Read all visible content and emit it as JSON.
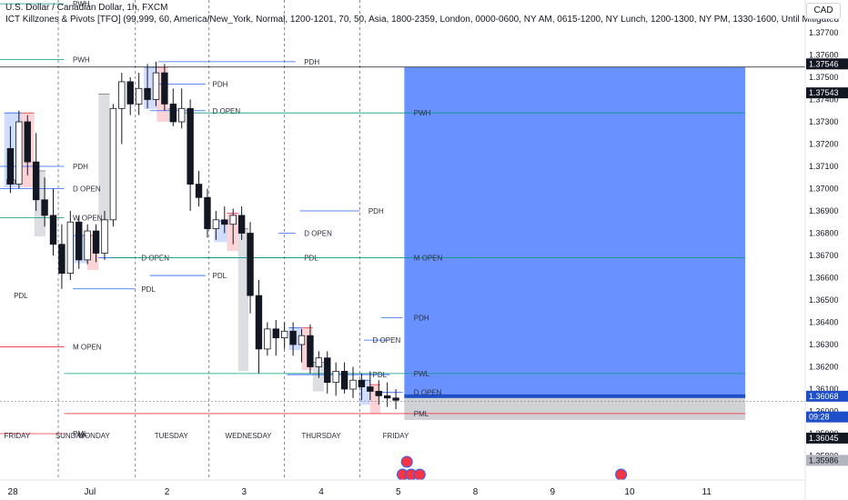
{
  "header": {
    "title": "U.S. Dollar / Canadian Dollar, 1h, FXCM",
    "indicator": "ICT Killzones & Pivots [TFO] (99,999, 60, America/New_York, Normal, 1200-1201, 70, 50, Asia, 1800-2359, London, 0000-0600, NY AM, 0615-1200, NY Lunch, 1200-1300, NY PM, 1330-1600, Until Mitigated",
    "currency": "CAD"
  },
  "chart_data": {
    "type": "candlestick",
    "symbol": "USDCAD",
    "timeframe": "1h",
    "ylim": [
      1.3575,
      1.3783
    ],
    "price_ticks": [
      "1.37700",
      "1.37600",
      "1.37500",
      "1.37400",
      "1.37300",
      "1.37200",
      "1.37100",
      "1.37000",
      "1.36900",
      "1.36800",
      "1.36700",
      "1.36600",
      "1.36500",
      "1.36400",
      "1.36300",
      "1.36200",
      "1.36100",
      "1.36000",
      "1.35900",
      "1.35800"
    ],
    "price_tick_values": [
      1.377,
      1.376,
      1.375,
      1.374,
      1.373,
      1.372,
      1.371,
      1.37,
      1.369,
      1.368,
      1.367,
      1.366,
      1.365,
      1.364,
      1.363,
      1.362,
      1.361,
      1.36,
      1.359,
      1.358
    ],
    "date_ticks": [
      {
        "label": "28",
        "t": 0.5
      },
      {
        "label": "Jul",
        "t": 9.5
      },
      {
        "label": "2",
        "t": 18.5
      },
      {
        "label": "3",
        "t": 27.5
      },
      {
        "label": "4",
        "t": 36.5
      },
      {
        "label": "5",
        "t": 45.5
      },
      {
        "label": "8",
        "t": 54.5
      },
      {
        "label": "9",
        "t": 63.5
      },
      {
        "label": "10",
        "t": 72.5
      },
      {
        "label": "11",
        "t": 81.5
      }
    ],
    "day_labels": [
      {
        "label": "FRIDAY",
        "t": 1
      },
      {
        "label": "SUNDAY",
        "t": 7.2
      },
      {
        "label": "MONDAY",
        "t": 10
      },
      {
        "label": "TUESDAY",
        "t": 19
      },
      {
        "label": "WEDNESDAY",
        "t": 28
      },
      {
        "label": "THURSDAY",
        "t": 36.5
      },
      {
        "label": "FRIDAY",
        "t": 45.2
      }
    ],
    "day_separators": [
      5.8,
      14.8,
      23.4,
      32.2,
      41.0
    ],
    "candles": [
      [
        1.3718,
        1.3728,
        1.3698,
        1.3702
      ],
      [
        1.3702,
        1.3735,
        1.37,
        1.373
      ],
      [
        1.373,
        1.3733,
        1.3706,
        1.3712
      ],
      [
        1.3712,
        1.3725,
        1.369,
        1.3695
      ],
      [
        1.3695,
        1.3705,
        1.3683,
        1.3688
      ],
      [
        1.3688,
        1.37,
        1.367,
        1.3675
      ],
      [
        1.3675,
        1.3684,
        1.3655,
        1.3662
      ],
      [
        1.3662,
        1.369,
        1.3659,
        1.3685
      ],
      [
        1.3685,
        1.3688,
        1.3664,
        1.3668
      ],
      [
        1.3668,
        1.3684,
        1.3666,
        1.3681
      ],
      [
        1.3681,
        1.3684,
        1.3667,
        1.3671
      ],
      [
        1.3671,
        1.369,
        1.3668,
        1.3686
      ],
      [
        1.3686,
        1.3738,
        1.3683,
        1.3736
      ],
      [
        1.3736,
        1.3752,
        1.372,
        1.3748
      ],
      [
        1.3748,
        1.375,
        1.3733,
        1.3738
      ],
      [
        1.3738,
        1.3752,
        1.3733,
        1.3745
      ],
      [
        1.3745,
        1.3756,
        1.3736,
        1.374
      ],
      [
        1.374,
        1.3757,
        1.3737,
        1.3752
      ],
      [
        1.3752,
        1.3756,
        1.3735,
        1.3738
      ],
      [
        1.3738,
        1.3745,
        1.3728,
        1.373
      ],
      [
        1.373,
        1.3745,
        1.3727,
        1.3736
      ],
      [
        1.3736,
        1.374,
        1.369,
        1.3702
      ],
      [
        1.3702,
        1.3708,
        1.3692,
        1.3696
      ],
      [
        1.3696,
        1.37,
        1.3678,
        1.3682
      ],
      [
        1.3682,
        1.369,
        1.3677,
        1.3686
      ],
      [
        1.3686,
        1.3692,
        1.368,
        1.3684
      ],
      [
        1.3684,
        1.3691,
        1.3675,
        1.3688
      ],
      [
        1.3688,
        1.3692,
        1.3677,
        1.368
      ],
      [
        1.368,
        1.3685,
        1.3644,
        1.3652
      ],
      [
        1.3652,
        1.3659,
        1.3617,
        1.3628
      ],
      [
        1.3628,
        1.364,
        1.3625,
        1.3637
      ],
      [
        1.3637,
        1.3641,
        1.3625,
        1.3633
      ],
      [
        1.3633,
        1.364,
        1.3628,
        1.3636
      ],
      [
        1.3636,
        1.364,
        1.3625,
        1.363
      ],
      [
        1.363,
        1.3637,
        1.3622,
        1.3634
      ],
      [
        1.3634,
        1.3639,
        1.3617,
        1.362
      ],
      [
        1.362,
        1.3627,
        1.3615,
        1.3624
      ],
      [
        1.3624,
        1.3627,
        1.3608,
        1.3613
      ],
      [
        1.3613,
        1.3622,
        1.3607,
        1.3618
      ],
      [
        1.3618,
        1.3622,
        1.3608,
        1.361
      ],
      [
        1.361,
        1.362,
        1.3606,
        1.3614
      ],
      [
        1.3614,
        1.3617,
        1.3605,
        1.3611
      ],
      [
        1.3611,
        1.3618,
        1.3605,
        1.3609
      ],
      [
        1.3609,
        1.3614,
        1.3603,
        1.3607
      ],
      [
        1.3607,
        1.3613,
        1.3602,
        1.3606
      ],
      [
        1.3606,
        1.361,
        1.3601,
        1.3605
      ]
    ],
    "killzone_boxes": [
      {
        "t0": -0.5,
        "t1": 1.5,
        "p0": 1.37005,
        "p1": 1.3734,
        "color": "blue"
      },
      {
        "t0": 1.5,
        "t1": 3.0,
        "p0": 1.37005,
        "p1": 1.3734,
        "color": "red"
      },
      {
        "t0": 3.0,
        "t1": 4.3,
        "p0": 1.36785,
        "p1": 1.3708,
        "color": "gray"
      },
      {
        "t0": 7.6,
        "t1": 9.2,
        "p0": 1.36665,
        "p1": 1.3679,
        "color": "blue"
      },
      {
        "t0": 9.2,
        "t1": 10.5,
        "p0": 1.36635,
        "p1": 1.3679,
        "color": "red"
      },
      {
        "t0": 10.5,
        "t1": 11.8,
        "p0": 1.3685,
        "p1": 1.37425,
        "color": "gray"
      },
      {
        "t0": 15.8,
        "t1": 17.3,
        "p0": 1.37358,
        "p1": 1.37545,
        "color": "blue"
      },
      {
        "t0": 17.3,
        "t1": 18.6,
        "p0": 1.373,
        "p1": 1.37545,
        "color": "red"
      },
      {
        "t0": 18.6,
        "t1": 19.8,
        "p0": 1.373,
        "p1": 1.37358,
        "color": "gray"
      },
      {
        "t0": 24.0,
        "t1": 25.5,
        "p0": 1.3676,
        "p1": 1.36855,
        "color": "blue"
      },
      {
        "t0": 25.5,
        "t1": 26.8,
        "p0": 1.3672,
        "p1": 1.3689,
        "color": "red"
      },
      {
        "t0": 26.8,
        "t1": 28.0,
        "p0": 1.3618,
        "p1": 1.3682,
        "color": "gray"
      },
      {
        "t0": 32.7,
        "t1": 34.2,
        "p0": 1.36275,
        "p1": 1.36375,
        "color": "blue"
      },
      {
        "t0": 34.2,
        "t1": 35.5,
        "p0": 1.36185,
        "p1": 1.36375,
        "color": "red"
      },
      {
        "t0": 35.5,
        "t1": 36.8,
        "p0": 1.3609,
        "p1": 1.3622,
        "color": "gray"
      },
      {
        "t0": 40.9,
        "t1": 42.2,
        "p0": 1.3603,
        "p1": 1.3614,
        "color": "blue"
      },
      {
        "t0": 42.2,
        "t1": 43.4,
        "p0": 1.3599,
        "p1": 1.3612,
        "color": "red"
      }
    ],
    "levels": [
      {
        "label": "PWH",
        "price": 1.3783,
        "t0": -1,
        "t1": 6.5,
        "color": "#089981",
        "lx": 7.5
      },
      {
        "label": "PWH",
        "price": 1.3758,
        "t0": -1,
        "t1": 6.5,
        "color": "#089981",
        "lx": 7.5
      },
      {
        "label": "PDH",
        "price": 1.371,
        "t0": -1,
        "t1": 6.5,
        "color": "#2962ff",
        "lx": 7.5
      },
      {
        "label": "D OPEN",
        "price": 1.37,
        "t0": -1,
        "t1": 6.5,
        "color": "#2962ff",
        "lx": 7.5
      },
      {
        "label": "W OPEN",
        "price": 1.3687,
        "t0": -1,
        "t1": 6.5,
        "color": "#089981",
        "lx": 7.5
      },
      {
        "label": "D OPEN",
        "price": 1.3669,
        "t0": 10.5,
        "t1": 14.8,
        "color": "#2962ff",
        "lx": 15.5
      },
      {
        "label": "PDL",
        "price": 1.3655,
        "t0": 7.5,
        "t1": 14.8,
        "color": "#2962ff",
        "lx": 15.5
      },
      {
        "label": "M OPEN",
        "price": 1.3629,
        "t0": -1,
        "t1": 6.5,
        "color": "#f23645",
        "lx": 7.5
      },
      {
        "label": "PML",
        "price": 1.359,
        "t0": -1,
        "t1": 6.5,
        "color": "#f23645",
        "lx": 7.5
      },
      {
        "label": "PDH",
        "price": 1.3757,
        "t0": 17.5,
        "t1": 33.5,
        "color": "#2962ff",
        "lx": 34.5
      },
      {
        "label": "PDH",
        "price": 1.3747,
        "t0": 17.5,
        "t1": 23.0,
        "color": "#2962ff",
        "lx": 23.8
      },
      {
        "label": "D OPEN",
        "price": 1.3735,
        "t0": 16.5,
        "t1": 23.0,
        "color": "#2962ff",
        "lx": 23.8
      },
      {
        "label": "PDL",
        "price": 1.3661,
        "t0": 16.5,
        "t1": 23.0,
        "color": "#2962ff",
        "lx": 23.8
      },
      {
        "label": "PDH",
        "price": 1.369,
        "t0": 34.0,
        "t1": 41.0,
        "color": "#2962ff",
        "lx": 42.0
      },
      {
        "label": "D OPEN",
        "price": 1.368,
        "t0": 31.5,
        "t1": 33.5,
        "color": "#2962ff",
        "lx": 34.5
      },
      {
        "label": "PDL",
        "price": 1.3669,
        "t0": 23.0,
        "t1": 33.5,
        "color": "#2962ff",
        "lx": 34.5
      },
      {
        "label": "D OPEN",
        "price": 1.3632,
        "t0": 41.5,
        "t1": 44.5,
        "color": "#2962ff",
        "lx": 42.5
      },
      {
        "label": "PDL",
        "price": 1.36165,
        "t0": 32.5,
        "t1": 44.5,
        "color": "#2962ff",
        "lx": 42.5
      },
      {
        "label": "PWH",
        "price": 1.3734,
        "t0": 19.8,
        "t1": 86,
        "color": "#089981",
        "lx": 47.3
      },
      {
        "label": "M OPEN",
        "price": 1.3669,
        "t0": 11.8,
        "t1": 86,
        "color": "#089981",
        "lx": 47.3
      },
      {
        "label": "PDH",
        "price": 1.3642,
        "t0": 43.5,
        "t1": 46,
        "color": "#2962ff",
        "lx": 47.3
      },
      {
        "label": "PWL",
        "price": 1.3617,
        "t0": 6.5,
        "t1": 86,
        "color": "#089981",
        "lx": 47.3
      },
      {
        "label": "D OPEN",
        "price": 1.36085,
        "t0": 43.5,
        "t1": 46,
        "color": "#2962ff",
        "lx": 47.3
      },
      {
        "label": "PML",
        "price": 1.3599,
        "t0": 6.5,
        "t1": 86,
        "color": "#f23645",
        "lx": 47.3
      }
    ],
    "extra_labels": [
      {
        "label": "PDH",
        "price": 1.3703,
        "t": -0.3
      },
      {
        "label": "PDL",
        "price": 1.3652,
        "t": 0.6
      }
    ],
    "position": {
      "t0": 46.2,
      "t1": 86.0,
      "top": 1.37546,
      "entry": 1.36068,
      "bottom": 1.35986
    },
    "price_labels": [
      {
        "text": "1.37546",
        "price": 1.3756,
        "kind": "dark"
      },
      {
        "text": "1.37543",
        "price": 1.3743,
        "kind": "dark"
      },
      {
        "text": "1.36068",
        "price": 1.36068,
        "kind": "blue"
      },
      {
        "text": "09:28",
        "price": 1.35975,
        "kind": "blue"
      },
      {
        "text": "1.36045",
        "price": 1.3588,
        "kind": "dark"
      },
      {
        "text": "1.35986",
        "price": 1.3578,
        "kind": "gray"
      }
    ],
    "current_price": 1.36045,
    "xlim": [
      -1,
      93
    ]
  }
}
